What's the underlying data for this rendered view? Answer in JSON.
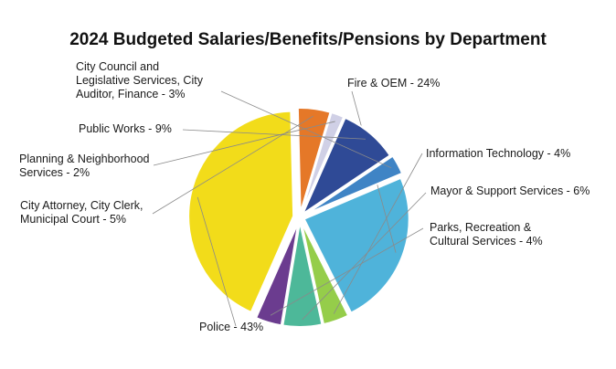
{
  "chart_data": {
    "type": "pie",
    "title": "2024 Budgeted Salaries/Benefits/Pensions by Department",
    "slices": [
      {
        "label": [
          "Fire & OEM - 24%"
        ],
        "value": 24,
        "color": "#4fb3da"
      },
      {
        "label": [
          "Information Technology - 4%"
        ],
        "value": 4,
        "color": "#95cd4a"
      },
      {
        "label": [
          "Mayor & Support Services - 6%"
        ],
        "value": 6,
        "color": "#4db899"
      },
      {
        "label": [
          "Parks, Recreation &",
          "Cultural Services - 4%"
        ],
        "value": 4,
        "color": "#6b3c8f"
      },
      {
        "label": [
          "Police - 43%"
        ],
        "value": 43,
        "color": "#f2dc1a"
      },
      {
        "label": [
          "City Attorney, City Clerk,",
          "Municipal Court - 5%"
        ],
        "value": 5,
        "color": "#e57828"
      },
      {
        "label": [
          "Planning & Neighborhood",
          "Services - 2%"
        ],
        "value": 2,
        "color": "#d0d0e6"
      },
      {
        "label": [
          "Public Works - 9%"
        ],
        "value": 9,
        "color": "#2f4a96"
      },
      {
        "label": [
          "City Council and",
          "Legislative Services, City",
          "Auditor, Finance - 3%"
        ],
        "value": 3,
        "color": "#3f84c5"
      }
    ],
    "legend": "none"
  }
}
